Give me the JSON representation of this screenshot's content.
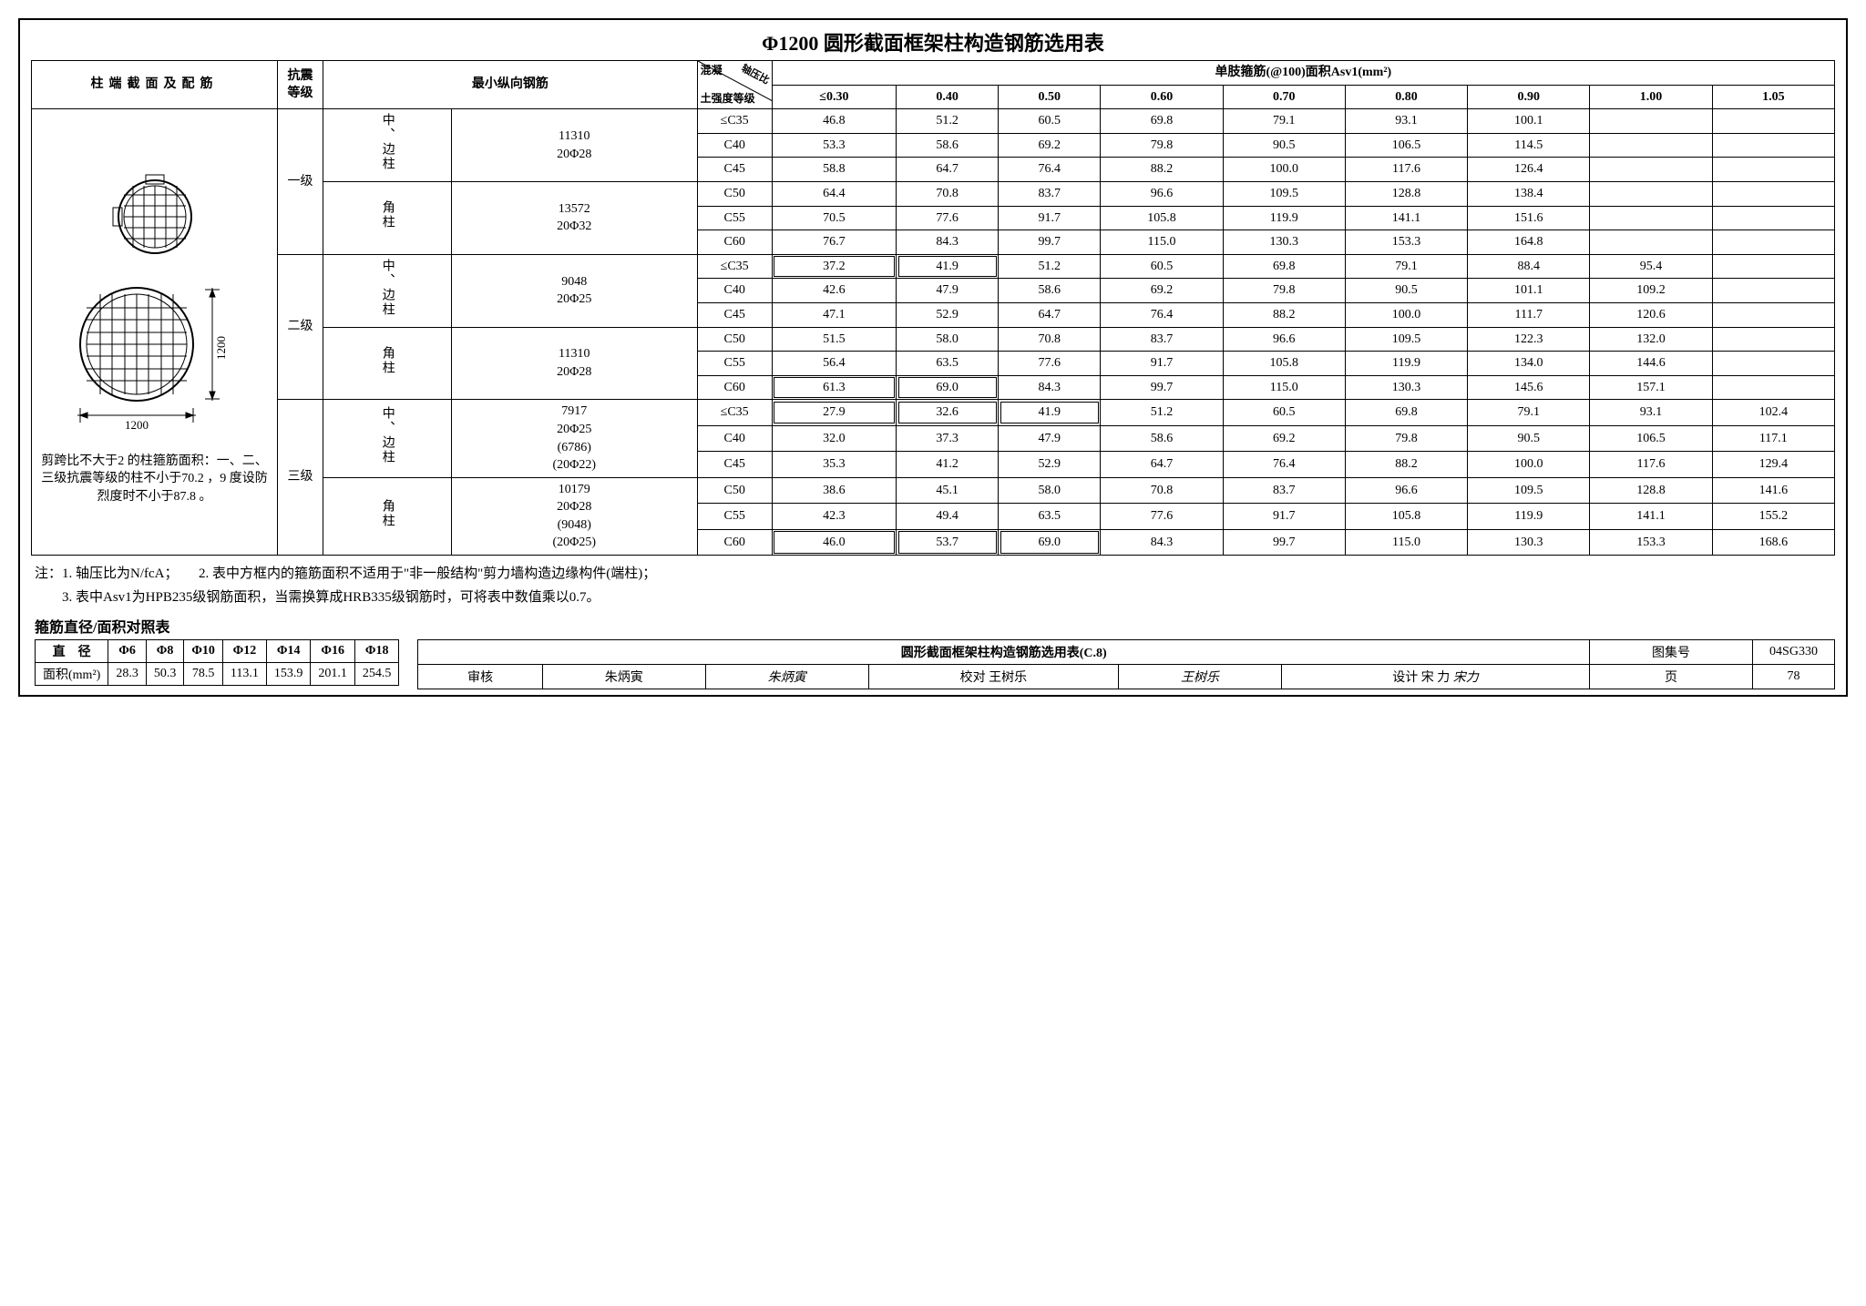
{
  "title": "Φ1200 圆形截面框架柱构造钢筋选用表",
  "header": {
    "col_section": "柱端截面及配筋",
    "col_seis": "抗震等级",
    "col_minrebar": "最小纵向钢筋",
    "col_concrete_top": "混凝",
    "col_concrete_bot": "土强度等级",
    "col_axial": "轴压比",
    "col_asv": "单肢箍筋(@100)面积Asv1(mm²)",
    "ratios": [
      "≤0.30",
      "0.40",
      "0.50",
      "0.60",
      "0.70",
      "0.80",
      "0.90",
      "1.00",
      "1.05"
    ]
  },
  "diagram": {
    "dim": "1200"
  },
  "left_note": "剪跨比不大于2 的柱箍筋面积：一、二、三级抗震等级的柱不小于70.2 ，9 度设防烈度时不小于87.8 。",
  "grades": [
    "一级",
    "二级",
    "三级"
  ],
  "col_types": {
    "mid": "中、边柱",
    "corner": "角柱"
  },
  "rebar": {
    "g1mid": "11310\n20Φ28",
    "g1cor": "13572\n20Φ32",
    "g2mid": "9048\n20Φ25",
    "g2cor": "11310\n20Φ28",
    "g3mid": "7917\n20Φ25\n(6786)\n(20Φ22)",
    "g3cor": "10179\n20Φ28\n(9048)\n(20Φ25)"
  },
  "concrete": [
    "≤C35",
    "C40",
    "C45",
    "C50",
    "C55",
    "C60"
  ],
  "rows": {
    "g1": [
      [
        46.8,
        51.2,
        60.5,
        69.8,
        79.1,
        93.1,
        100.1,
        "",
        ""
      ],
      [
        53.3,
        58.6,
        69.2,
        79.8,
        90.5,
        106.5,
        114.5,
        "",
        ""
      ],
      [
        58.8,
        64.7,
        76.4,
        88.2,
        100.0,
        117.6,
        126.4,
        "",
        ""
      ],
      [
        64.4,
        70.8,
        83.7,
        96.6,
        109.5,
        128.8,
        138.4,
        "",
        ""
      ],
      [
        70.5,
        77.6,
        91.7,
        105.8,
        119.9,
        141.1,
        151.6,
        "",
        ""
      ],
      [
        76.7,
        84.3,
        99.7,
        115.0,
        130.3,
        153.3,
        164.8,
        "",
        ""
      ]
    ],
    "g2": [
      [
        37.2,
        41.9,
        51.2,
        60.5,
        69.8,
        79.1,
        88.4,
        95.4,
        ""
      ],
      [
        42.6,
        47.9,
        58.6,
        69.2,
        79.8,
        90.5,
        101.1,
        109.2,
        ""
      ],
      [
        47.1,
        52.9,
        64.7,
        76.4,
        88.2,
        100.0,
        111.7,
        120.6,
        ""
      ],
      [
        51.5,
        58.0,
        70.8,
        83.7,
        96.6,
        109.5,
        122.3,
        132.0,
        ""
      ],
      [
        56.4,
        63.5,
        77.6,
        91.7,
        105.8,
        119.9,
        134.0,
        144.6,
        ""
      ],
      [
        61.3,
        69.0,
        84.3,
        99.7,
        115.0,
        130.3,
        145.6,
        157.1,
        ""
      ]
    ],
    "g3": [
      [
        27.9,
        32.6,
        41.9,
        51.2,
        60.5,
        69.8,
        79.1,
        93.1,
        102.4
      ],
      [
        32.0,
        37.3,
        47.9,
        58.6,
        69.2,
        79.8,
        90.5,
        106.5,
        117.1
      ],
      [
        35.3,
        41.2,
        52.9,
        64.7,
        76.4,
        88.2,
        100.0,
        117.6,
        129.4
      ],
      [
        38.6,
        45.1,
        58.0,
        70.8,
        83.7,
        96.6,
        109.5,
        128.8,
        141.6
      ],
      [
        42.3,
        49.4,
        63.5,
        77.6,
        91.7,
        105.8,
        119.9,
        141.1,
        155.2
      ],
      [
        46.0,
        53.7,
        69.0,
        84.3,
        99.7,
        115.0,
        130.3,
        153.3,
        168.6
      ]
    ]
  },
  "boxed": {
    "g2": [
      [
        0,
        0
      ],
      [
        0,
        1
      ],
      [
        5,
        0
      ],
      [
        5,
        1
      ]
    ],
    "g3": [
      [
        0,
        0
      ],
      [
        0,
        1
      ],
      [
        0,
        2
      ],
      [
        5,
        0
      ],
      [
        5,
        1
      ],
      [
        5,
        2
      ]
    ]
  },
  "notes": [
    "注：1. 轴压比为N/fcA；　　2. 表中方框内的箍筋面积不适用于\"非一般结构\"剪力墙构造边缘构件(端柱)；",
    "　　3. 表中Asv1为HPB235级钢筋面积，当需换算成HRB335级钢筋时，可将表中数值乘以0.7。"
  ],
  "lookup_title": "箍筋直径/面积对照表",
  "lookup": {
    "cols": [
      "直　径",
      "Φ6",
      "Φ8",
      "Φ10",
      "Φ12",
      "Φ14",
      "Φ16",
      "Φ18"
    ],
    "row_label": "面积(mm²)",
    "vals": [
      "28.3",
      "50.3",
      "78.5",
      "113.1",
      "153.9",
      "201.1",
      "254.5"
    ]
  },
  "footer": {
    "title": "圆形截面框架柱构造钢筋选用表(C.8)",
    "set_label": "图集号",
    "set_no": "04SG330",
    "review": "审核",
    "reviewer": "朱炳寅",
    "rsig": "朱炳寅",
    "check": "校对",
    "checker": "王树乐",
    "csig": "王树乐",
    "design": "设计",
    "designer": "宋 力",
    "dsig": "宋力",
    "page_label": "页",
    "page": "78"
  }
}
